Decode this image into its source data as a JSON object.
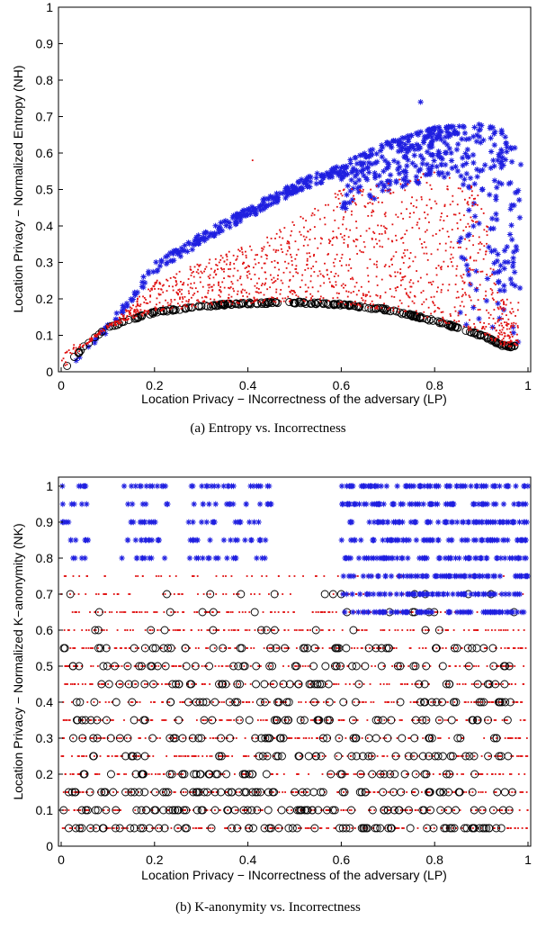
{
  "chart_data": [
    {
      "type": "scatter",
      "caption": "(a) Entropy vs. Incorrectness",
      "xlabel": "Location Privacy − INcorrectness of the adversary (LP)",
      "ylabel": "Location Privacy − Normalized Entropy (NH)",
      "xlim": [
        0,
        1
      ],
      "ylim": [
        0,
        1
      ],
      "xticks": [
        "0",
        "0.2",
        "0.4",
        "0.6",
        "0.8",
        "1"
      ],
      "yticks": [
        "0",
        "0.1",
        "0.2",
        "0.3",
        "0.4",
        "0.5",
        "0.6",
        "0.7",
        "0.8",
        "0.9",
        "1"
      ],
      "grid": false,
      "colors": {
        "blue_star": "#1f1fe0",
        "red_dot": "#e01010",
        "black_circle": "#000000"
      },
      "series": [
        {
          "marker": "black-circle",
          "pattern": "arc",
          "points": [
            [
              0.0,
              0.0
            ],
            [
              0.02,
              0.03
            ],
            [
              0.05,
              0.07
            ],
            [
              0.1,
              0.12
            ],
            [
              0.15,
              0.145
            ],
            [
              0.2,
              0.163
            ],
            [
              0.3,
              0.18
            ],
            [
              0.4,
              0.188
            ],
            [
              0.5,
              0.19
            ],
            [
              0.6,
              0.185
            ],
            [
              0.7,
              0.17
            ],
            [
              0.8,
              0.14
            ],
            [
              0.9,
              0.1
            ],
            [
              0.95,
              0.07
            ],
            [
              0.97,
              0.04
            ]
          ]
        },
        {
          "marker": "blue-star",
          "pattern": "upper-band",
          "points": [
            [
              0.0,
              0.0
            ],
            [
              0.05,
              0.07
            ],
            [
              0.1,
              0.13
            ],
            [
              0.15,
              0.22
            ],
            [
              0.2,
              0.3
            ],
            [
              0.3,
              0.38
            ],
            [
              0.4,
              0.45
            ],
            [
              0.5,
              0.52
            ],
            [
              0.6,
              0.57
            ],
            [
              0.7,
              0.63
            ],
            [
              0.8,
              0.67
            ],
            [
              0.9,
              0.68
            ],
            [
              0.95,
              0.66
            ],
            [
              0.98,
              0.6
            ],
            [
              0.77,
              0.74
            ],
            [
              0.98,
              0.15
            ]
          ]
        },
        {
          "marker": "red-dot",
          "pattern": "fill-between",
          "points": [
            [
              0.05,
              0.08
            ],
            [
              0.1,
              0.12
            ],
            [
              0.2,
              0.25
            ],
            [
              0.3,
              0.3
            ],
            [
              0.4,
              0.35
            ],
            [
              0.5,
              0.42
            ],
            [
              0.6,
              0.5
            ],
            [
              0.7,
              0.52
            ],
            [
              0.8,
              0.55
            ],
            [
              0.9,
              0.5
            ],
            [
              0.94,
              0.2
            ],
            [
              0.41,
              0.58
            ]
          ]
        }
      ]
    },
    {
      "type": "scatter",
      "caption": "(b) K-anonymity vs. Incorrectness",
      "xlabel": "Location Privacy − INcorrectness of the adversary (LP)",
      "ylabel": "Location Privacy − Normalized K−anonymity (NK)",
      "xlim": [
        0,
        1
      ],
      "ylim": [
        0,
        1
      ],
      "xticks": [
        "0",
        "0.2",
        "0.4",
        "0.6",
        "0.8",
        "1"
      ],
      "yticks": [
        "0",
        "0.1",
        "0.2",
        "0.3",
        "0.4",
        "0.5",
        "0.6",
        "0.7",
        "0.8",
        "0.9",
        "1"
      ],
      "grid": false,
      "colors": {
        "blue_star": "#1f1fe0",
        "red_dot": "#e01010",
        "black_circle": "#000000"
      },
      "levels": [
        0.05,
        0.1,
        0.15,
        0.2,
        0.25,
        0.3,
        0.35,
        0.4,
        0.45,
        0.5,
        0.55,
        0.6,
        0.65,
        0.7,
        0.75,
        0.8,
        0.85,
        0.9,
        0.95,
        1.0
      ],
      "series": [
        {
          "marker": "blue-star",
          "pattern": "rows-high",
          "y_values": [
            0.65,
            0.7,
            0.75,
            0.8,
            0.85,
            0.9,
            0.95,
            1.0
          ],
          "dense_x_range": [
            0.6,
            1.0
          ]
        },
        {
          "marker": "red-dot",
          "pattern": "rows-all",
          "y_values": [
            0.05,
            0.1,
            0.15,
            0.2,
            0.25,
            0.3,
            0.35,
            0.4,
            0.45,
            0.5,
            0.55,
            0.6,
            0.65,
            0.7,
            0.75
          ],
          "x_range": [
            0,
            1.0
          ]
        },
        {
          "marker": "black-circle",
          "pattern": "rows-low",
          "y_values": [
            0.05,
            0.1,
            0.15,
            0.2,
            0.25,
            0.3,
            0.35,
            0.4,
            0.45,
            0.5,
            0.55,
            0.6,
            0.65,
            0.7
          ],
          "x_range": [
            0,
            0.97
          ]
        }
      ]
    }
  ]
}
